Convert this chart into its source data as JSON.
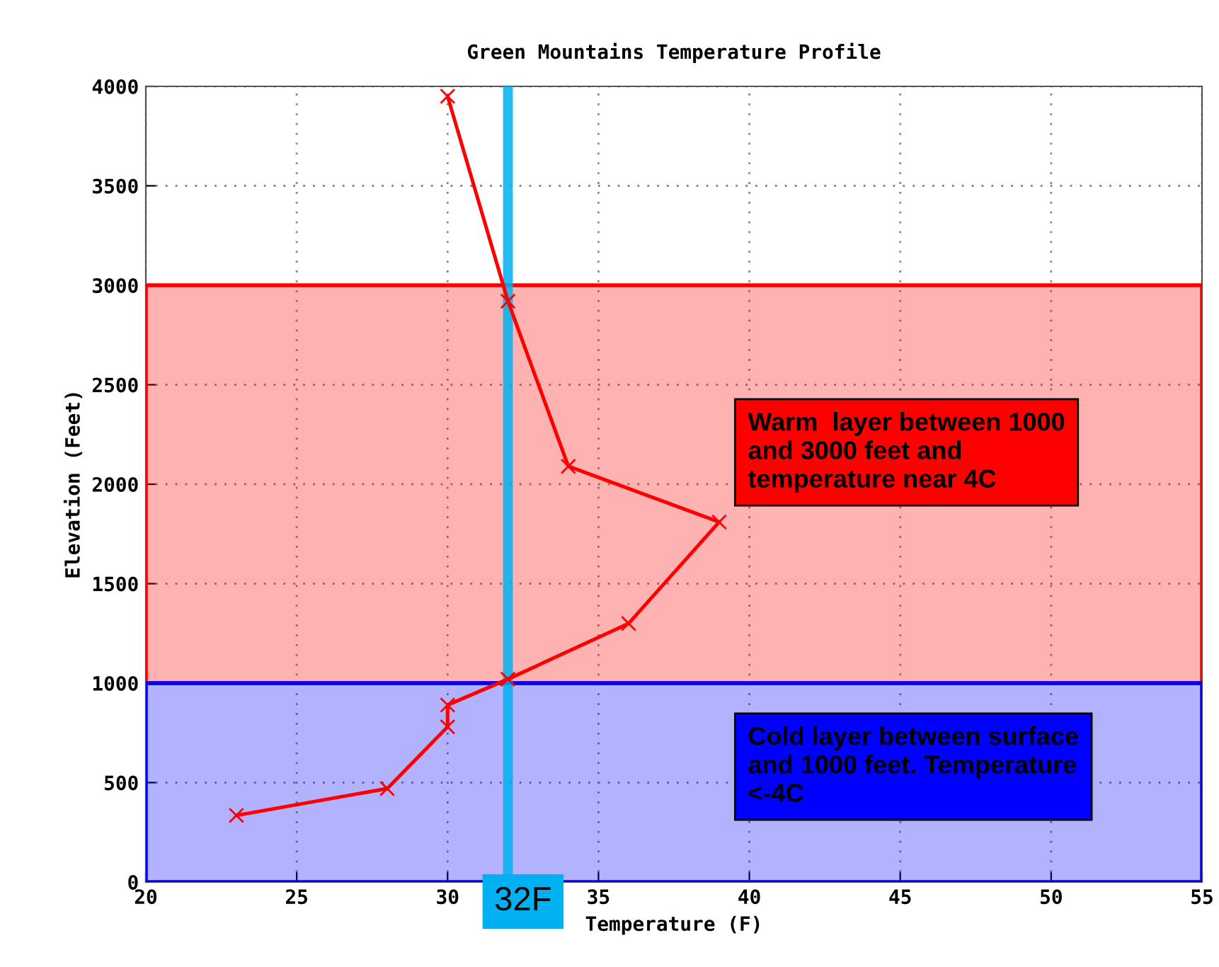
{
  "chart_data": {
    "type": "line",
    "title": "Green Mountains Temperature Profile",
    "xlabel": "Temperature (F)",
    "ylabel": "Elevation (Feet)",
    "series": [
      {
        "color": "#ff0000",
        "x": [
          23,
          28,
          30,
          30,
          32,
          36,
          39,
          34,
          32,
          30
        ],
        "values": [
          335,
          470,
          780,
          890,
          1020,
          1300,
          1810,
          2090,
          2920,
          3950
        ]
      }
    ],
    "xlim": [
      20,
      55
    ],
    "xticks": [
      20,
      25,
      30,
      35,
      40,
      45,
      50,
      55
    ],
    "ylim": [
      0,
      4000
    ],
    "yticks": [
      0,
      500,
      1000,
      1500,
      2000,
      2500,
      3000,
      3500,
      4000
    ],
    "grid": true,
    "marker": "cross",
    "line_style": "solid",
    "legend": false,
    "ref_lines": [
      {
        "axis": "x",
        "value": 32,
        "label": "32F",
        "color": "#00b0f0"
      }
    ],
    "bands": [
      {
        "axis": "y",
        "from": 1000,
        "to": 3000,
        "color": "#ff0000",
        "label": "Warm  layer between 1000\nand 3000 feet and\ntemperature near 4C"
      },
      {
        "axis": "y",
        "from": 0,
        "to": 1000,
        "color": "#0000ff",
        "label": "Cold layer between surface\nand 1000 feet. Temperature\n<-4C"
      }
    ]
  }
}
